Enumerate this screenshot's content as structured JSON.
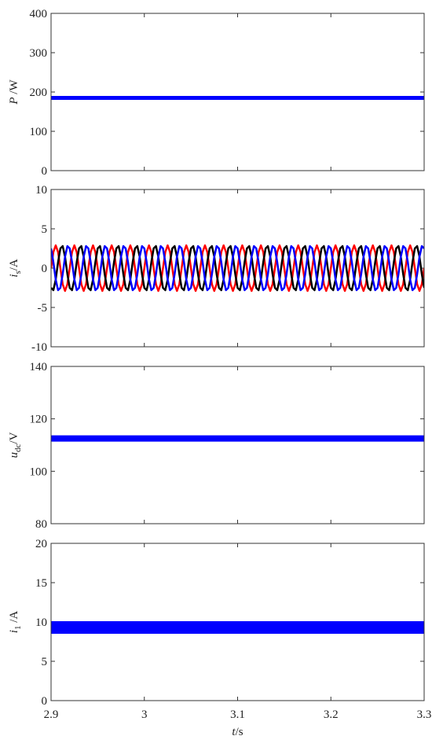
{
  "chart_data": [
    {
      "type": "line",
      "ylabel": {
        "symbol": "P",
        "unit": " /W"
      },
      "x": [
        2.9,
        3.3
      ],
      "series": [
        {
          "color": "#0000ff",
          "values": [
            185,
            185
          ]
        }
      ],
      "ylim": [
        0,
        400
      ],
      "yticks": [
        0,
        100,
        200,
        300,
        400
      ]
    },
    {
      "type": "line",
      "ylabel": {
        "symbol": "i",
        "sub": "s",
        "unit": "/A"
      },
      "x": [
        2.9,
        2.9025,
        2.905,
        2.9075,
        2.91,
        2.9125,
        2.915,
        2.9175,
        2.92,
        2.9225,
        2.925,
        2.9275,
        2.93,
        2.9325,
        2.935,
        2.9375,
        2.94,
        2.9425,
        2.945,
        2.9475,
        2.95,
        2.9525,
        2.955,
        2.9575,
        2.96,
        2.9625,
        2.965,
        2.9675,
        2.97,
        2.9725,
        2.975,
        2.9775,
        2.98,
        2.9825,
        2.985,
        2.9875,
        2.99,
        2.9925,
        2.995,
        2.9975,
        3,
        3.0025,
        3.005,
        3.0075,
        3.01,
        3.0125,
        3.015,
        3.0175,
        3.02,
        3.0225,
        3.025,
        3.0275,
        3.03,
        3.0325,
        3.035,
        3.0375,
        3.04,
        3.0425,
        3.045,
        3.0475,
        3.05,
        3.0525,
        3.055,
        3.0575,
        3.06,
        3.0625,
        3.065,
        3.0675,
        3.07,
        3.0725,
        3.075,
        3.0775,
        3.08,
        3.0825,
        3.085,
        3.0875,
        3.09,
        3.0925,
        3.095,
        3.0975,
        3.1,
        3.1025,
        3.105,
        3.1075,
        3.11,
        3.1125,
        3.115,
        3.1175,
        3.12,
        3.1225,
        3.125,
        3.1275,
        3.13,
        3.1325,
        3.135,
        3.1375,
        3.14,
        3.1425,
        3.145,
        3.1475,
        3.15,
        3.1525,
        3.155,
        3.1575,
        3.16,
        3.1625,
        3.165,
        3.1675,
        3.17,
        3.1725,
        3.175,
        3.1775,
        3.18,
        3.1825,
        3.185,
        3.1875,
        3.19,
        3.1925,
        3.195,
        3.1975,
        3.2,
        3.2025,
        3.205,
        3.2075,
        3.21,
        3.2125,
        3.215,
        3.2175,
        3.22,
        3.2225,
        3.225,
        3.2275,
        3.23,
        3.2325,
        3.235,
        3.2375,
        3.24,
        3.2425,
        3.245,
        3.2475,
        3.25,
        3.2525,
        3.255,
        3.2575,
        3.26,
        3.2625,
        3.265,
        3.2675,
        3.27,
        3.2725,
        3.275,
        3.2775,
        3.28,
        3.2825,
        3.285,
        3.2875,
        3.29,
        3.2925,
        3.295,
        3.2975,
        3.3
      ],
      "series": [
        {
          "color": "#ff0000",
          "values": [
            0,
            2.05,
            2.9,
            2.05,
            0,
            -2.05,
            -2.9,
            -2.05,
            0,
            2.05,
            2.9,
            2.05,
            0,
            -2.05,
            -2.9,
            -2.05,
            0,
            2.05,
            2.9,
            2.05,
            0,
            -2.05,
            -2.9,
            -2.05,
            0,
            2.05,
            2.9,
            2.05,
            0,
            -2.05,
            -2.9,
            -2.05,
            0,
            2.05,
            2.9,
            2.05,
            0,
            -2.05,
            -2.9,
            -2.05,
            0,
            2.05,
            2.9,
            2.05,
            0,
            -2.05,
            -2.9,
            -2.05,
            0,
            2.05,
            2.9,
            2.05,
            0,
            -2.05,
            -2.9,
            -2.05,
            0,
            2.05,
            2.9,
            2.05,
            0,
            -2.05,
            -2.9,
            -2.05,
            0,
            2.05,
            2.9,
            2.05,
            0,
            -2.05,
            -2.9,
            -2.05,
            0,
            2.05,
            2.9,
            2.05,
            0,
            -2.05,
            -2.9,
            -2.05,
            0,
            2.05,
            2.9,
            2.05,
            0,
            -2.05,
            -2.9,
            -2.05,
            0,
            2.05,
            2.9,
            2.05,
            0,
            -2.05,
            -2.9,
            -2.05,
            0,
            2.05,
            2.9,
            2.05,
            0,
            -2.05,
            -2.9,
            -2.05,
            0,
            2.05,
            2.9,
            2.05,
            0,
            -2.05,
            -2.9,
            -2.05,
            0,
            2.05,
            2.9,
            2.05,
            0,
            -2.05,
            -2.9,
            -2.05,
            0,
            2.05,
            2.9,
            2.05,
            0,
            -2.05,
            -2.9,
            -2.05,
            0,
            2.05,
            2.9,
            2.05,
            0,
            -2.05,
            -2.9,
            -2.05,
            0,
            2.05,
            2.9,
            2.05,
            0,
            -2.05,
            -2.9,
            -2.05,
            0,
            2.05,
            2.9,
            2.05,
            0,
            -2.05,
            -2.9,
            -2.05,
            0,
            2.05,
            2.9,
            2.05,
            0,
            -2.05,
            -2.9,
            -2.05,
            0
          ]
        },
        {
          "color": "#000000",
          "values": [
            -2.51,
            -2.8,
            -1.45,
            0.75,
            2.51,
            2.8,
            1.45,
            -0.75,
            -2.51,
            -2.8,
            -1.45,
            0.75,
            2.51,
            2.8,
            1.45,
            -0.75,
            -2.51,
            -2.8,
            -1.45,
            0.75,
            2.51,
            2.8,
            1.45,
            -0.75,
            -2.51,
            -2.8,
            -1.45,
            0.75,
            2.51,
            2.8,
            1.45,
            -0.75,
            -2.51,
            -2.8,
            -1.45,
            0.75,
            2.51,
            2.8,
            1.45,
            -0.75,
            -2.51,
            -2.8,
            -1.45,
            0.75,
            2.51,
            2.8,
            1.45,
            -0.75,
            -2.51,
            -2.8,
            -1.45,
            0.75,
            2.51,
            2.8,
            1.45,
            -0.75,
            -2.51,
            -2.8,
            -1.45,
            0.75,
            2.51,
            2.8,
            1.45,
            -0.75,
            -2.51,
            -2.8,
            -1.45,
            0.75,
            2.51,
            2.8,
            1.45,
            -0.75,
            -2.51,
            -2.8,
            -1.45,
            0.75,
            2.51,
            2.8,
            1.45,
            -0.75,
            -2.51,
            -2.8,
            -1.45,
            0.75,
            2.51,
            2.8,
            1.45,
            -0.75,
            -2.51,
            -2.8,
            -1.45,
            0.75,
            2.51,
            2.8,
            1.45,
            -0.75,
            -2.51,
            -2.8,
            -1.45,
            0.75,
            2.51,
            2.8,
            1.45,
            -0.75,
            -2.51,
            -2.8,
            -1.45,
            0.75,
            2.51,
            2.8,
            1.45,
            -0.75,
            -2.51,
            -2.8,
            -1.45,
            0.75,
            2.51,
            2.8,
            1.45,
            -0.75,
            -2.51,
            -2.8,
            -1.45,
            0.75,
            2.51,
            2.8,
            1.45,
            -0.75,
            -2.51,
            -2.8,
            -1.45,
            0.75,
            2.51,
            2.8,
            1.45,
            -0.75,
            -2.51,
            -2.8,
            -1.45,
            0.75,
            2.51,
            2.8,
            1.45,
            -0.75,
            -2.51,
            -2.8,
            -1.45,
            0.75,
            2.51,
            2.8,
            1.45,
            -0.75,
            -2.51,
            -2.8,
            -1.45,
            0.75,
            2.51,
            2.8,
            1.45,
            -0.75,
            -2.51
          ]
        },
        {
          "color": "#0000ff",
          "values": [
            2.51,
            0.75,
            -1.45,
            -2.8,
            -2.51,
            -0.75,
            1.45,
            2.8,
            2.51,
            0.75,
            -1.45,
            -2.8,
            -2.51,
            -0.75,
            1.45,
            2.8,
            2.51,
            0.75,
            -1.45,
            -2.8,
            -2.51,
            -0.75,
            1.45,
            2.8,
            2.51,
            0.75,
            -1.45,
            -2.8,
            -2.51,
            -0.75,
            1.45,
            2.8,
            2.51,
            0.75,
            -1.45,
            -2.8,
            -2.51,
            -0.75,
            1.45,
            2.8,
            2.51,
            0.75,
            -1.45,
            -2.8,
            -2.51,
            -0.75,
            1.45,
            2.8,
            2.51,
            0.75,
            -1.45,
            -2.8,
            -2.51,
            -0.75,
            1.45,
            2.8,
            2.51,
            0.75,
            -1.45,
            -2.8,
            -2.51,
            -0.75,
            1.45,
            2.8,
            2.51,
            0.75,
            -1.45,
            -2.8,
            -2.51,
            -0.75,
            1.45,
            2.8,
            2.51,
            0.75,
            -1.45,
            -2.8,
            -2.51,
            -0.75,
            1.45,
            2.8,
            2.51,
            0.75,
            -1.45,
            -2.8,
            -2.51,
            -0.75,
            1.45,
            2.8,
            2.51,
            0.75,
            -1.45,
            -2.8,
            -2.51,
            -0.75,
            1.45,
            2.8,
            2.51,
            0.75,
            -1.45,
            -2.8,
            -2.51,
            -0.75,
            1.45,
            2.8,
            2.51,
            0.75,
            -1.45,
            -2.8,
            -2.51,
            -0.75,
            1.45,
            2.8,
            2.51,
            0.75,
            -1.45,
            -2.8,
            -2.51,
            -0.75,
            1.45,
            2.8,
            2.51,
            0.75,
            -1.45,
            -2.8,
            -2.51,
            -0.75,
            1.45,
            2.8,
            2.51,
            0.75,
            -1.45,
            -2.8,
            -2.51,
            -0.75,
            1.45,
            2.8,
            2.51,
            0.75,
            -1.45,
            -2.8,
            -2.51,
            -0.75,
            1.45,
            2.8,
            2.51,
            0.75,
            -1.45,
            -2.8,
            -2.51,
            -0.75,
            1.45,
            2.8,
            2.51,
            0.75,
            -1.45,
            -2.8,
            -2.51,
            -0.75,
            1.45,
            2.8,
            2.51
          ]
        }
      ],
      "ylim": [
        -10,
        10
      ],
      "yticks": [
        -10,
        -5,
        0,
        5,
        10
      ]
    },
    {
      "type": "line",
      "ylabel": {
        "symbol": "u",
        "sub": "dc",
        "unit": "/V"
      },
      "x": [
        2.9,
        3.3
      ],
      "series": [
        {
          "color": "#0000ff",
          "values": [
            112.5,
            112.5
          ]
        }
      ],
      "ylim": [
        80,
        140
      ],
      "yticks": [
        80,
        100,
        120,
        140
      ]
    },
    {
      "type": "line",
      "ylabel": {
        "symbol": "i",
        "sub": "1",
        "unit": " /A"
      },
      "x": [
        2.9,
        3.3
      ],
      "series": [
        {
          "color": "#0000ff",
          "values": [
            9.3,
            9.3
          ]
        }
      ],
      "ylim": [
        0,
        20
      ],
      "yticks": [
        0,
        5,
        10,
        15,
        20
      ],
      "xlabel": {
        "symbol": "t",
        "unit": "/s"
      },
      "xlim": [
        2.9,
        3.3
      ],
      "xticks": [
        2.9,
        3,
        3.1,
        3.2,
        3.3
      ]
    }
  ]
}
